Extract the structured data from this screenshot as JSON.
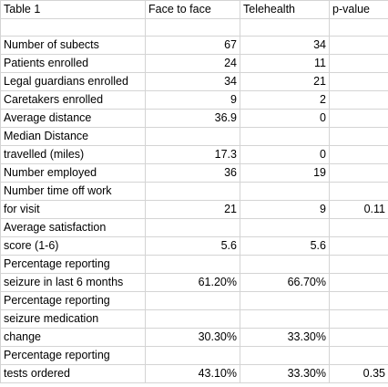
{
  "header": {
    "table_name": "Table 1",
    "col_face": "Face to face",
    "col_tele": "Telehealth",
    "col_p": "p-value"
  },
  "rows": [
    {
      "label": "",
      "face": "",
      "tele": "",
      "p": ""
    },
    {
      "label": "Number of subects",
      "face": "67",
      "tele": "34",
      "p": ""
    },
    {
      "label": "Patients enrolled",
      "face": "24",
      "tele": "11",
      "p": ""
    },
    {
      "label": "Legal guardians enrolled",
      "face": "34",
      "tele": "21",
      "p": ""
    },
    {
      "label": "Caretakers enrolled",
      "face": "9",
      "tele": "2",
      "p": ""
    },
    {
      "label": "Average distance",
      "face": "36.9",
      "tele": "0",
      "p": ""
    },
    {
      "label": "Median Distance",
      "face": "",
      "tele": "",
      "p": ""
    },
    {
      "label": "travelled (miles)",
      "face": "17.3",
      "tele": "0",
      "p": ""
    },
    {
      "label": "Number employed",
      "face": "36",
      "tele": "19",
      "p": ""
    },
    {
      "label": "Number time off work",
      "face": "",
      "tele": "",
      "p": ""
    },
    {
      "label": "for visit",
      "face": "21",
      "tele": "9",
      "p": "0.11"
    },
    {
      "label": "Average satisfaction",
      "face": "",
      "tele": "",
      "p": ""
    },
    {
      "label": "score (1-6)",
      "face": "5.6",
      "tele": "5.6",
      "p": ""
    },
    {
      "label": "Percentage reporting",
      "face": "",
      "tele": "",
      "p": ""
    },
    {
      "label": "seizure in last 6 months",
      "face": "61.20%",
      "tele": "66.70%",
      "p": ""
    },
    {
      "label": "Percentage reporting",
      "face": "",
      "tele": "",
      "p": ""
    },
    {
      "label": "seizure medication",
      "face": "",
      "tele": "",
      "p": ""
    },
    {
      "label": "change",
      "face": "30.30%",
      "tele": "33.30%",
      "p": ""
    },
    {
      "label": "Percentage reporting",
      "face": "",
      "tele": "",
      "p": ""
    },
    {
      "label": "tests ordered",
      "face": "43.10%",
      "tele": "33.30%",
      "p": "0.35"
    }
  ]
}
